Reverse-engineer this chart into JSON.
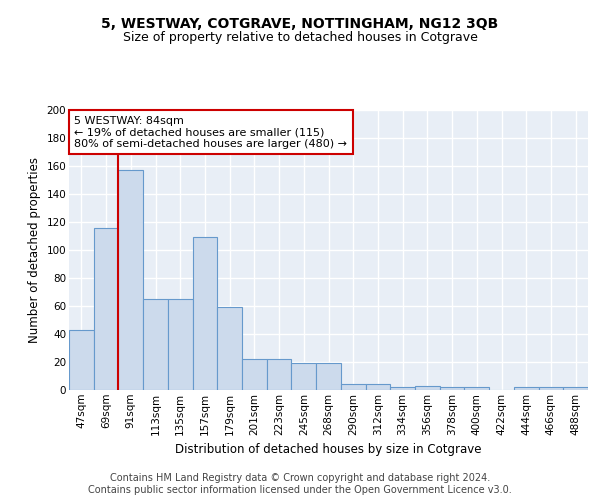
{
  "title": "5, WESTWAY, COTGRAVE, NOTTINGHAM, NG12 3QB",
  "subtitle": "Size of property relative to detached houses in Cotgrave",
  "xlabel": "Distribution of detached houses by size in Cotgrave",
  "ylabel": "Number of detached properties",
  "bar_values": [
    43,
    116,
    157,
    65,
    65,
    109,
    59,
    22,
    22,
    19,
    19,
    4,
    4,
    2,
    3,
    2,
    2,
    0,
    2,
    2,
    2
  ],
  "bin_labels": [
    "47sqm",
    "69sqm",
    "91sqm",
    "113sqm",
    "135sqm",
    "157sqm",
    "179sqm",
    "201sqm",
    "223sqm",
    "245sqm",
    "268sqm",
    "290sqm",
    "312sqm",
    "334sqm",
    "356sqm",
    "378sqm",
    "400sqm",
    "422sqm",
    "444sqm",
    "466sqm",
    "488sqm"
  ],
  "bar_color": "#ccdaec",
  "bar_edge_color": "#6699cc",
  "background_color": "#e8eef6",
  "grid_color": "#ffffff",
  "ylim": [
    0,
    200
  ],
  "yticks": [
    0,
    20,
    40,
    60,
    80,
    100,
    120,
    140,
    160,
    180,
    200
  ],
  "red_line_x": 1.5,
  "annotation_text": "5 WESTWAY: 84sqm\n← 19% of detached houses are smaller (115)\n80% of semi-detached houses are larger (480) →",
  "annotation_box_color": "#ffffff",
  "annotation_edge_color": "#cc0000",
  "footer_text": "Contains HM Land Registry data © Crown copyright and database right 2024.\nContains public sector information licensed under the Open Government Licence v3.0.",
  "title_fontsize": 10,
  "subtitle_fontsize": 9,
  "axis_label_fontsize": 8.5,
  "tick_fontsize": 7.5,
  "annotation_fontsize": 8,
  "footer_fontsize": 7
}
